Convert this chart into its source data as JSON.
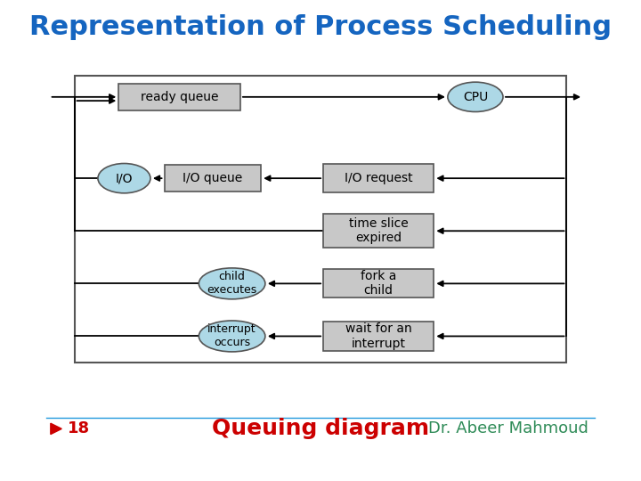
{
  "title": "Representation of Process Scheduling",
  "title_color": "#1565C0",
  "title_fontsize": 22,
  "bg_color": "#FFFFFF",
  "footer_text": "Queuing diagram",
  "footer_color": "#CC0000",
  "footer_fontsize": 18,
  "author_text": "Dr. Abeer Mahmoud",
  "author_color": "#2E8B57",
  "author_fontsize": 13,
  "slide_num": "18",
  "slide_num_color": "#CC0000",
  "box_fill": "#C8C8C8",
  "box_edge": "#555555",
  "ellipse_fill": "#ADD8E6",
  "ellipse_edge": "#555555",
  "footer_line_color": "#2299DD",
  "arrow_color": "#000000"
}
